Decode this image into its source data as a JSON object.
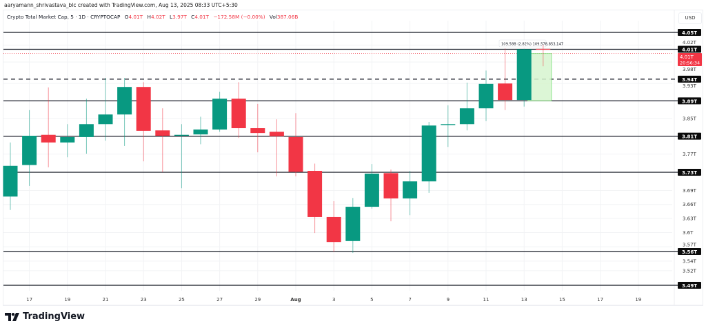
{
  "credit": "aaryamann_shrivastava_blc created with TradingView.com, Aug 13, 2025 08:33 UTC+5:30",
  "legend": {
    "symbol": "Crypto Total Market Cap, 5 · 1D · CRYPTOCAP",
    "open_label": "O",
    "open": "4.01T",
    "high_label": "H",
    "high": "4.02T",
    "low_label": "L",
    "low": "3.97T",
    "close_label": "C",
    "close": "4.01T",
    "change": "−172.58M (−0.00%)",
    "vol_label": "Vol",
    "vol": "387.06B"
  },
  "currency": "USD",
  "brand": "TradingView",
  "measure_label": "109.58B (2.82%) 109,578,853,147",
  "current_price": {
    "label": "4.01T",
    "countdown": "20:56:34"
  },
  "colors": {
    "up": "#089981",
    "down": "#f23645",
    "level": "#131722",
    "measure_fill": "#d7f5cf",
    "measure_border": "#7ce07a"
  },
  "chart_data": {
    "type": "candlestick",
    "scale": "log",
    "ylim": [
      3.48,
      4.08
    ],
    "grid": true,
    "x_tick_labels": [
      "17",
      "19",
      "21",
      "23",
      "25",
      "27",
      "29",
      "Aug",
      "3",
      "5",
      "7",
      "9",
      "11",
      "13",
      "15",
      "17",
      "19"
    ],
    "y_tick_labels": [
      "4.02T",
      "3.98T",
      "3.93T",
      "3.85T",
      "3.77T",
      "3.69T",
      "3.66T",
      "3.63T",
      "3.6T",
      "3.57T",
      "3.54T",
      "3.52T"
    ],
    "y_tick_values": [
      4.02,
      3.98,
      3.93,
      3.85,
      3.77,
      3.69,
      3.66,
      3.63,
      3.6,
      3.57,
      3.54,
      3.52
    ],
    "levels": [
      {
        "value": 4.05,
        "label": "4.05T",
        "style": "solid"
      },
      {
        "value": 4.01,
        "label": "4.01T",
        "style": "solid"
      },
      {
        "value": 3.94,
        "label": "3.94T",
        "style": "dashed"
      },
      {
        "value": 3.89,
        "label": "3.89T",
        "style": "solid"
      },
      {
        "value": 3.81,
        "label": "3.81T",
        "style": "solid"
      },
      {
        "value": 3.73,
        "label": "3.73T",
        "style": "solid"
      },
      {
        "value": 3.56,
        "label": "3.56T",
        "style": "solid"
      },
      {
        "value": 3.49,
        "label": "3.49T",
        "style": "solid"
      }
    ],
    "measure": {
      "from": 3.89,
      "to": 4.0,
      "start_date": "2025-08-12",
      "end_date": "2025-08-13"
    },
    "candles": [
      {
        "date": "2025-07-16",
        "o": 3.677,
        "h": 3.796,
        "l": 3.648,
        "c": 3.744
      },
      {
        "date": "2025-07-17",
        "o": 3.746,
        "h": 3.869,
        "l": 3.7,
        "c": 3.811
      },
      {
        "date": "2025-07-18",
        "o": 3.813,
        "h": 3.921,
        "l": 3.741,
        "c": 3.796
      },
      {
        "date": "2025-07-19",
        "o": 3.796,
        "h": 3.837,
        "l": 3.763,
        "c": 3.808
      },
      {
        "date": "2025-07-20",
        "o": 3.808,
        "h": 3.895,
        "l": 3.771,
        "c": 3.837
      },
      {
        "date": "2025-07-21",
        "o": 3.837,
        "h": 3.943,
        "l": 3.8,
        "c": 3.859
      },
      {
        "date": "2025-07-22",
        "o": 3.859,
        "h": 3.943,
        "l": 3.788,
        "c": 3.922
      },
      {
        "date": "2025-07-23",
        "o": 3.922,
        "h": 3.933,
        "l": 3.754,
        "c": 3.822
      },
      {
        "date": "2025-07-24",
        "o": 3.823,
        "h": 3.873,
        "l": 3.73,
        "c": 3.811
      },
      {
        "date": "2025-07-25",
        "o": 3.811,
        "h": 3.837,
        "l": 3.695,
        "c": 3.813
      },
      {
        "date": "2025-07-26",
        "o": 3.814,
        "h": 3.854,
        "l": 3.792,
        "c": 3.825
      },
      {
        "date": "2025-07-27",
        "o": 3.825,
        "h": 3.911,
        "l": 3.82,
        "c": 3.895
      },
      {
        "date": "2025-07-28",
        "o": 3.895,
        "h": 3.933,
        "l": 3.806,
        "c": 3.828
      },
      {
        "date": "2025-07-29",
        "o": 3.828,
        "h": 3.883,
        "l": 3.774,
        "c": 3.817
      },
      {
        "date": "2025-07-30",
        "o": 3.82,
        "h": 3.848,
        "l": 3.721,
        "c": 3.81
      },
      {
        "date": "2025-07-31",
        "o": 3.808,
        "h": 3.862,
        "l": 3.721,
        "c": 3.731
      },
      {
        "date": "2025-08-01",
        "o": 3.733,
        "h": 3.749,
        "l": 3.599,
        "c": 3.633
      },
      {
        "date": "2025-08-02",
        "o": 3.633,
        "h": 3.667,
        "l": 3.559,
        "c": 3.58
      },
      {
        "date": "2025-08-03",
        "o": 3.582,
        "h": 3.674,
        "l": 3.557,
        "c": 3.655
      },
      {
        "date": "2025-08-04",
        "o": 3.655,
        "h": 3.748,
        "l": 3.651,
        "c": 3.727
      },
      {
        "date": "2025-08-05",
        "o": 3.728,
        "h": 3.736,
        "l": 3.624,
        "c": 3.673
      },
      {
        "date": "2025-08-06",
        "o": 3.673,
        "h": 3.733,
        "l": 3.637,
        "c": 3.71
      },
      {
        "date": "2025-08-07",
        "o": 3.71,
        "h": 3.842,
        "l": 3.685,
        "c": 3.834
      },
      {
        "date": "2025-08-08",
        "o": 3.836,
        "h": 3.88,
        "l": 3.786,
        "c": 3.837
      },
      {
        "date": "2025-08-09",
        "o": 3.837,
        "h": 3.932,
        "l": 3.823,
        "c": 3.873
      },
      {
        "date": "2025-08-10",
        "o": 3.873,
        "h": 3.96,
        "l": 3.844,
        "c": 3.929
      },
      {
        "date": "2025-08-11",
        "o": 3.93,
        "h": 4.012,
        "l": 3.869,
        "c": 3.892
      },
      {
        "date": "2025-08-12",
        "o": 3.892,
        "h": 4.011,
        "l": 3.877,
        "c": 4.01
      },
      {
        "date": "2025-08-13",
        "o": 4.011,
        "h": 4.02,
        "l": 3.97,
        "c": 4.01
      }
    ]
  }
}
